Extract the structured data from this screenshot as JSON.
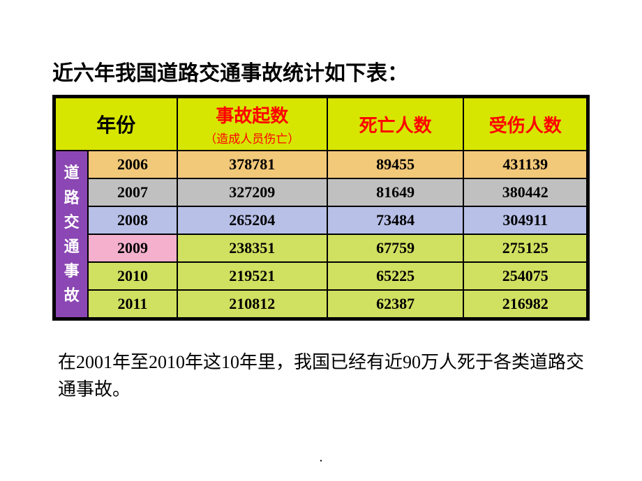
{
  "title": "近六年我国道路交通事故统计如下表：",
  "header": {
    "year_label": "年份",
    "col1": "事故起数",
    "col1_sub": "（造成人员伤亡）",
    "col2": "死亡人数",
    "col3": "受伤人数",
    "header_bg": "#d6e600",
    "header_red": "#ff0000",
    "header_black": "#000000"
  },
  "side": {
    "c1": "道",
    "c2": "路",
    "c3": "交",
    "c4": "通",
    "c5": "事",
    "c6": "故",
    "bg": "#8b47b3",
    "fg": "#ffffff"
  },
  "rows": [
    {
      "year": "2006",
      "accidents": "378781",
      "deaths": "89455",
      "injured": "431139",
      "bg": "#f2c879"
    },
    {
      "year": "2007",
      "accidents": "327209",
      "deaths": "81649",
      "injured": "380442",
      "bg": "#c0c0c0"
    },
    {
      "year": "2008",
      "accidents": "265204",
      "deaths": "73484",
      "injured": "304911",
      "bg": "#b8c0e8"
    },
    {
      "year": "2009",
      "accidents": "238351",
      "deaths": "67759",
      "injured": "275125",
      "bg": "#f4b0cd",
      "year_bg": "#f4b0cd",
      "rest_bg": "#d0e060"
    },
    {
      "year": "2010",
      "accidents": "219521",
      "deaths": "65225",
      "injured": "254075",
      "bg": "#d0e060"
    },
    {
      "year": "2011",
      "accidents": "210812",
      "deaths": "62387",
      "injured": "216982",
      "bg": "#d0e060"
    }
  ],
  "col_widths": {
    "side": "48px",
    "year": "130px",
    "accidents": "220px",
    "deaths": "200px",
    "injured": "180px"
  },
  "footnote": "在2001年至2010年这10年里，我国已经有近90万人死于各类道路交通事故。",
  "page_marker": ".",
  "slide_bg": "#ffffff"
}
